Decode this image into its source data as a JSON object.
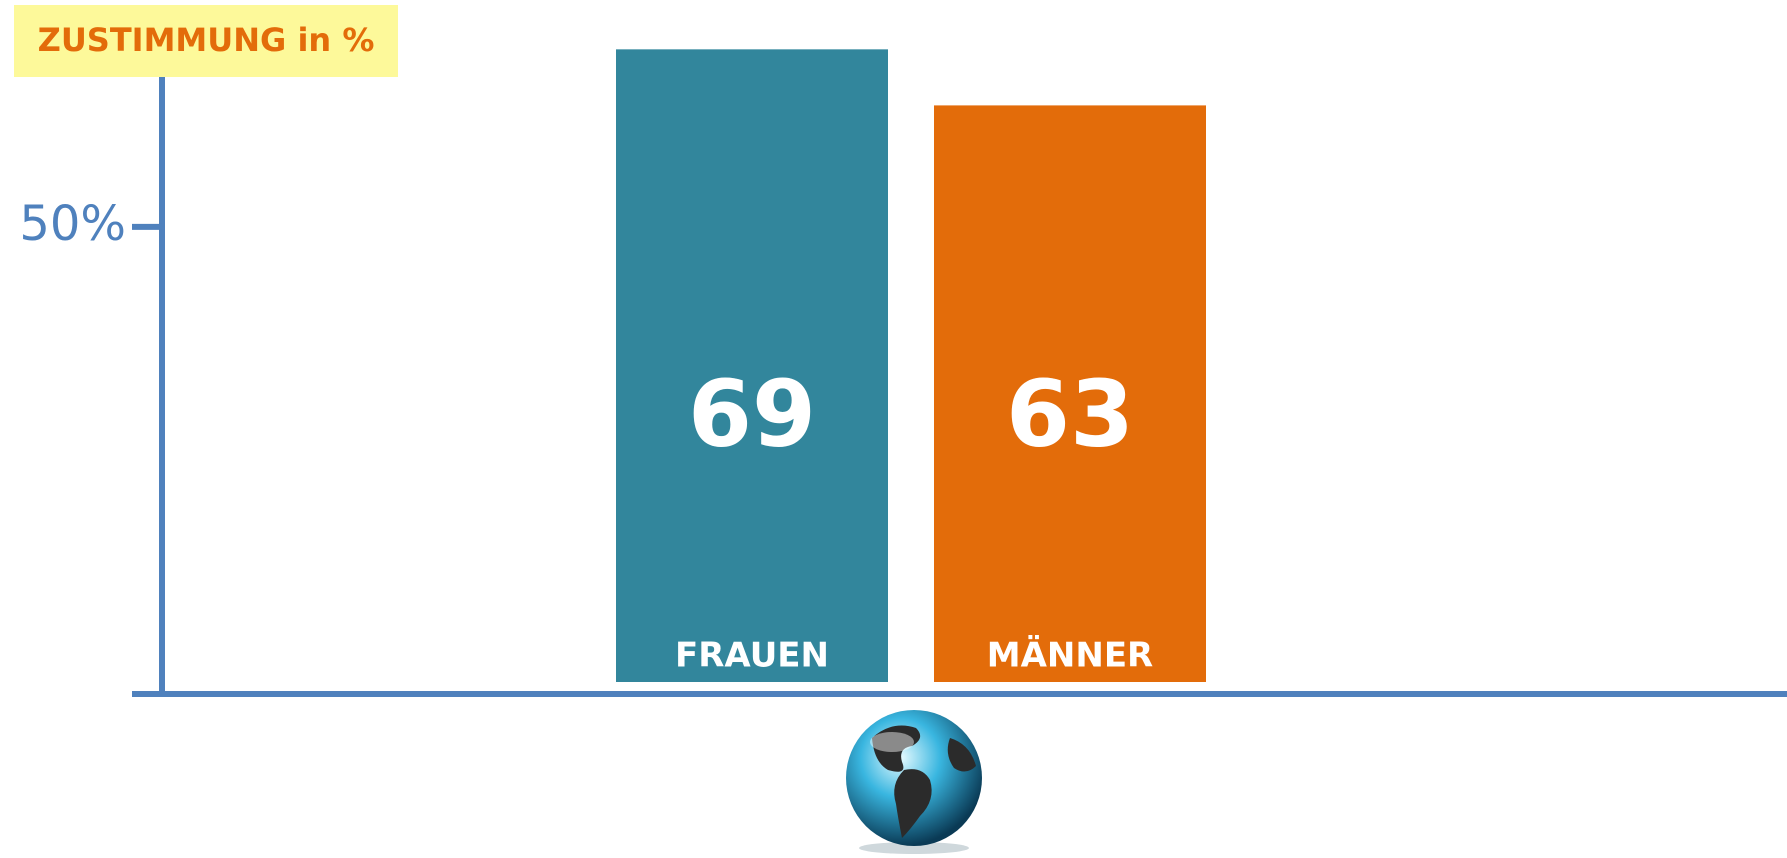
{
  "chart_data": {
    "type": "bar",
    "title": "ZUSTIMMUNG in %",
    "categories": [
      "FRAUEN",
      "MÄNNER"
    ],
    "values": [
      69,
      63
    ],
    "colors": [
      "#32869c",
      "#e36c0a"
    ],
    "ylim": [
      0,
      70
    ],
    "yticks": [
      {
        "value": 50,
        "label": "50%"
      }
    ],
    "axis_color": "#4f81bd"
  }
}
